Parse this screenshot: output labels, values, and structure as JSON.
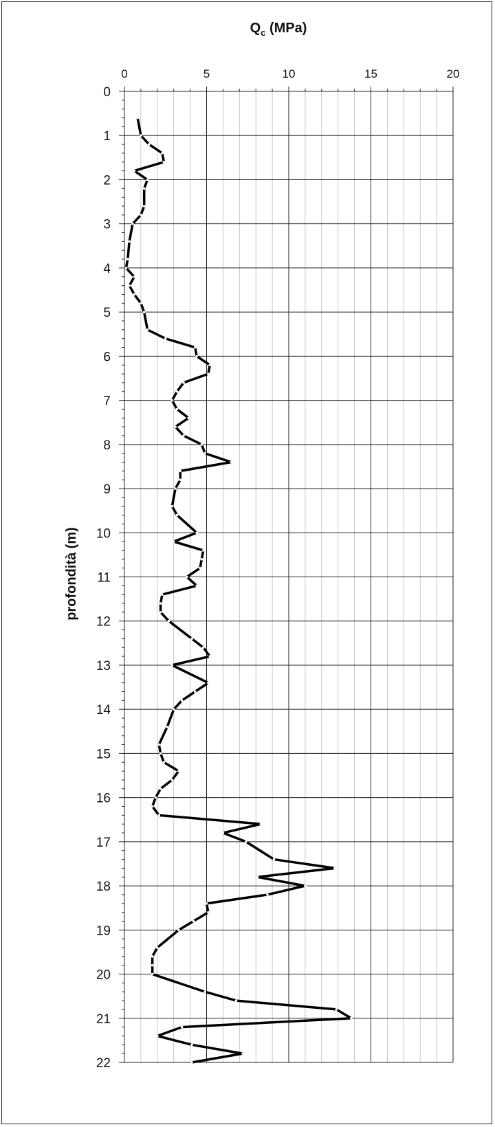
{
  "chart_data": {
    "type": "line",
    "title_main": "Q",
    "title_sub": "c",
    "title_rest": " (MPa)",
    "ylabel": "profondità (m)",
    "xlim": [
      0,
      20
    ],
    "ylim": [
      0,
      22
    ],
    "x_ticks": [
      0,
      5,
      10,
      15,
      20
    ],
    "y_ticks": [
      0,
      1,
      2,
      3,
      4,
      5,
      6,
      7,
      8,
      9,
      10,
      11,
      12,
      13,
      14,
      15,
      16,
      17,
      18,
      19,
      20,
      21,
      22
    ],
    "grid": true,
    "x_axis_position": "top",
    "series": [
      {
        "color": "#000000",
        "points": [
          [
            0.8,
            0.6
          ],
          [
            1.0,
            1.0
          ],
          [
            1.5,
            1.2
          ],
          [
            2.3,
            1.4
          ],
          [
            2.4,
            1.6
          ],
          [
            0.6,
            1.8
          ],
          [
            1.4,
            2.0
          ],
          [
            1.2,
            2.2
          ],
          [
            1.2,
            2.6
          ],
          [
            1.0,
            2.8
          ],
          [
            0.5,
            3.0
          ],
          [
            0.3,
            3.4
          ],
          [
            0.2,
            3.8
          ],
          [
            0.1,
            4.0
          ],
          [
            0.6,
            4.2
          ],
          [
            0.3,
            4.4
          ],
          [
            0.6,
            4.6
          ],
          [
            1.0,
            4.8
          ],
          [
            1.2,
            5.0
          ],
          [
            1.4,
            5.4
          ],
          [
            2.5,
            5.6
          ],
          [
            4.3,
            5.8
          ],
          [
            4.4,
            6.0
          ],
          [
            5.2,
            6.2
          ],
          [
            5.1,
            6.4
          ],
          [
            3.6,
            6.6
          ],
          [
            3.2,
            6.8
          ],
          [
            2.9,
            7.0
          ],
          [
            3.2,
            7.2
          ],
          [
            3.9,
            7.4
          ],
          [
            3.1,
            7.6
          ],
          [
            3.6,
            7.8
          ],
          [
            4.7,
            8.0
          ],
          [
            4.9,
            8.2
          ],
          [
            6.5,
            8.4
          ],
          [
            3.4,
            8.6
          ],
          [
            3.4,
            8.8
          ],
          [
            3.1,
            9.0
          ],
          [
            2.9,
            9.4
          ],
          [
            3.2,
            9.6
          ],
          [
            4.4,
            10.0
          ],
          [
            3.0,
            10.2
          ],
          [
            4.8,
            10.4
          ],
          [
            4.7,
            10.6
          ],
          [
            4.6,
            10.8
          ],
          [
            3.8,
            11.0
          ],
          [
            4.4,
            11.2
          ],
          [
            2.3,
            11.4
          ],
          [
            2.2,
            11.6
          ],
          [
            2.2,
            11.8
          ],
          [
            2.7,
            12.0
          ],
          [
            4.1,
            12.4
          ],
          [
            4.8,
            12.6
          ],
          [
            5.2,
            12.8
          ],
          [
            2.9,
            13.0
          ],
          [
            5.1,
            13.4
          ],
          [
            4.3,
            13.6
          ],
          [
            3.5,
            13.8
          ],
          [
            3.0,
            14.0
          ],
          [
            2.6,
            14.4
          ],
          [
            2.1,
            14.8
          ],
          [
            2.2,
            15.0
          ],
          [
            2.4,
            15.2
          ],
          [
            3.3,
            15.4
          ],
          [
            2.9,
            15.6
          ],
          [
            2.2,
            15.8
          ],
          [
            1.9,
            16.0
          ],
          [
            1.7,
            16.2
          ],
          [
            2.1,
            16.4
          ],
          [
            8.3,
            16.6
          ],
          [
            6.0,
            16.8
          ],
          [
            7.4,
            17.0
          ],
          [
            9.1,
            17.4
          ],
          [
            12.8,
            17.6
          ],
          [
            8.1,
            17.8
          ],
          [
            11.0,
            18.0
          ],
          [
            8.7,
            18.2
          ],
          [
            5.0,
            18.4
          ],
          [
            5.1,
            18.6
          ],
          [
            4.2,
            18.8
          ],
          [
            3.3,
            19.0
          ],
          [
            2.0,
            19.4
          ],
          [
            1.7,
            19.6
          ],
          [
            1.7,
            19.8
          ],
          [
            1.7,
            20.0
          ],
          [
            4.9,
            20.4
          ],
          [
            6.8,
            20.6
          ],
          [
            12.9,
            20.8
          ],
          [
            13.8,
            21.0
          ],
          [
            3.5,
            21.2
          ],
          [
            2.0,
            21.4
          ],
          [
            4.1,
            21.6
          ],
          [
            7.2,
            21.8
          ],
          [
            4.1,
            22.0
          ]
        ]
      }
    ]
  }
}
